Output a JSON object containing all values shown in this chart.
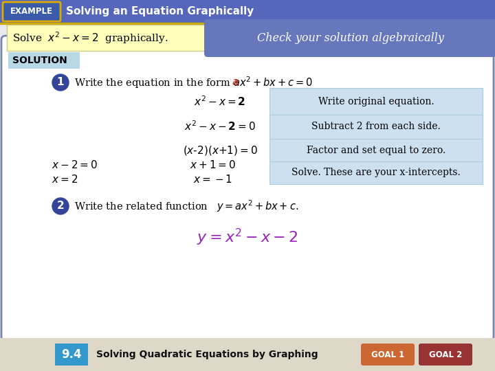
{
  "title": "Solving an Equation Graphically",
  "example_label": "EXAMPLE",
  "example_bg": "#3a5baa",
  "header_bg": "#5566bb",
  "gold_line_color": "#ccaa00",
  "check_text": "Check your solution algebraically",
  "solution_label": "SOLUTION",
  "solution_label_bg": "#b8d8e8",
  "main_bg": "#ffffff",
  "outer_bg": "#e8eaf0",
  "border_color": "#7788aa",
  "step_circle_color": "#334499",
  "blue_box_color": "#cce0f0",
  "row1_desc": "Write original equation.",
  "row2_desc": "Subtract 2 from each side.",
  "row3_desc": "Factor and set equal to zero.",
  "row4_desc": "Solve. These are your x-intercepts.",
  "footer_bg": "#ddd8c8",
  "footer_num": "9.4",
  "footer_num_bg": "#3399cc",
  "footer_text": "Solving Quadratic Equations by Graphing",
  "goal1_bg": "#cc6633",
  "goal2_bg": "#993333",
  "goal_label1": "GOAL 1",
  "goal_label2": "GOAL 2"
}
